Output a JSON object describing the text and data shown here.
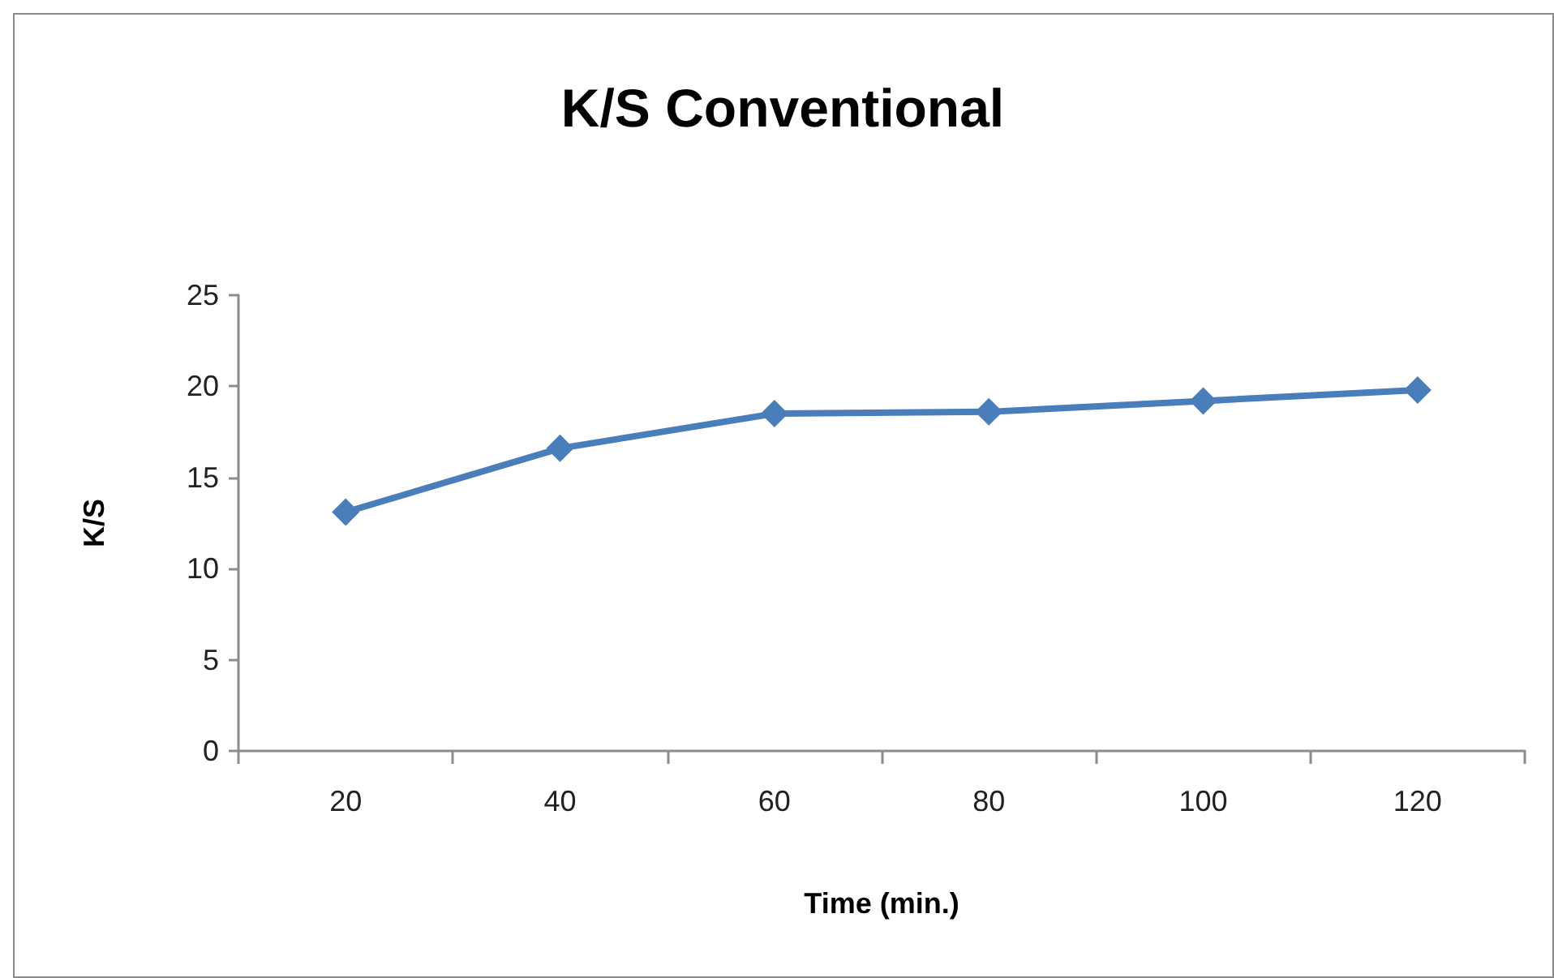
{
  "chart_data": {
    "type": "line",
    "title": "K/S Conventional",
    "xlabel": "Time (min.)",
    "ylabel": "K/S",
    "categories": [
      "20",
      "40",
      "60",
      "80",
      "100",
      "120"
    ],
    "values": [
      13.1,
      16.6,
      18.5,
      18.6,
      19.2,
      19.8
    ],
    "color": "#4a7ebb",
    "ylim": [
      0,
      25
    ],
    "yticks": [
      0,
      5,
      10,
      15,
      20,
      25
    ],
    "grid": false,
    "marker": "diamond"
  }
}
